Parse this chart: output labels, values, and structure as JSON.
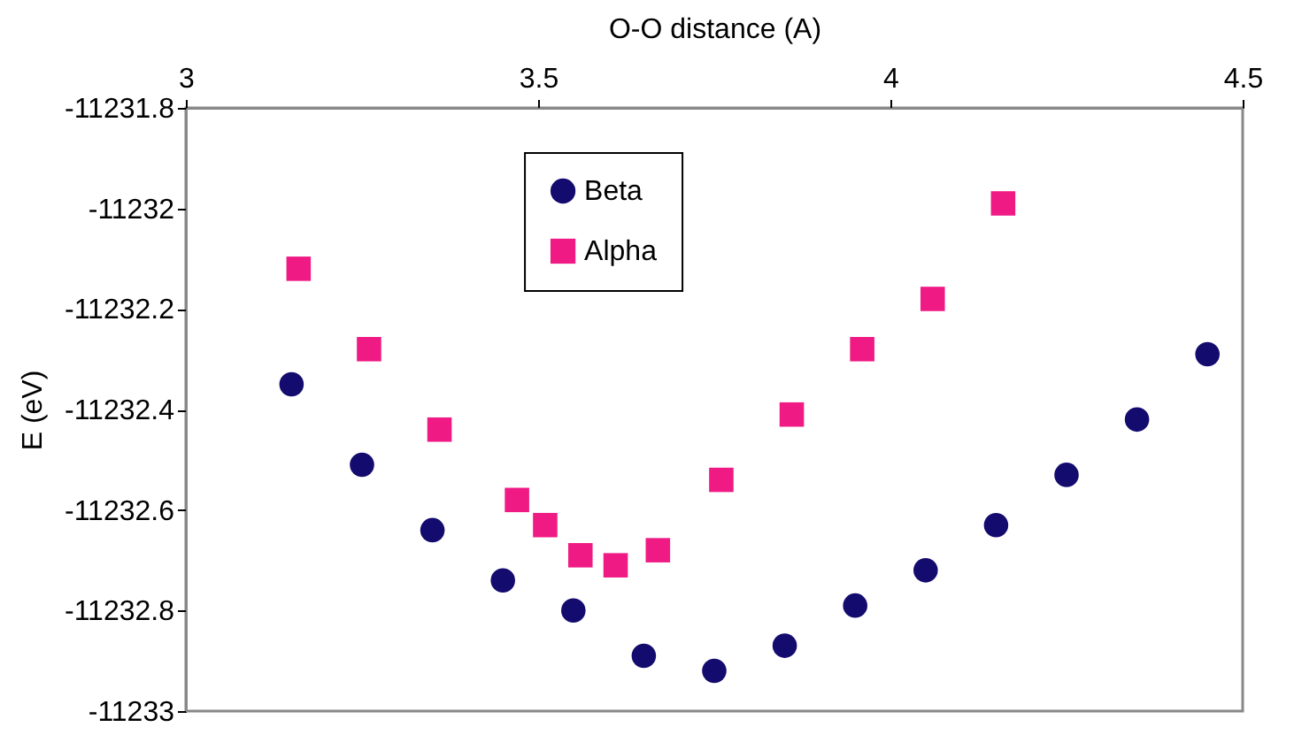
{
  "chart_data": {
    "type": "scatter",
    "xlabel": "O-O distance (A)",
    "ylabel": "E (eV)",
    "xlim": [
      3,
      4.5
    ],
    "xticks": [
      3,
      3.5,
      4,
      4.5
    ],
    "ylim": [
      -11233,
      -11231.8
    ],
    "yticks": [
      -11231.8,
      -11232,
      -11232.2,
      -11232.4,
      -11232.6,
      -11232.8,
      -11233
    ],
    "grid": false,
    "legend": "top",
    "series": [
      {
        "name": "Beta",
        "color": "#140b6e",
        "marker": "circle",
        "x": [
          3.15,
          3.25,
          3.35,
          3.45,
          3.55,
          3.65,
          3.75,
          3.85,
          3.95,
          4.05,
          4.15,
          4.25,
          4.35,
          4.45
        ],
        "values": [
          -11232.35,
          -11232.51,
          -11232.64,
          -11232.74,
          -11232.8,
          -11232.89,
          -11232.92,
          -11232.87,
          -11232.79,
          -11232.72,
          -11232.63,
          -11232.53,
          -11232.42,
          -11232.29
        ]
      },
      {
        "name": "Alpha",
        "color": "#ef1a84",
        "marker": "square",
        "x": [
          3.16,
          3.26,
          3.36,
          3.47,
          3.51,
          3.56,
          3.61,
          3.67,
          3.76,
          3.86,
          3.96,
          4.06,
          4.16
        ],
        "values": [
          -11232.12,
          -11232.28,
          -11232.44,
          -11232.58,
          -11232.63,
          -11232.69,
          -11232.71,
          -11232.68,
          -11232.54,
          -11232.41,
          -11232.28,
          -11232.18,
          -11231.99
        ]
      }
    ]
  }
}
